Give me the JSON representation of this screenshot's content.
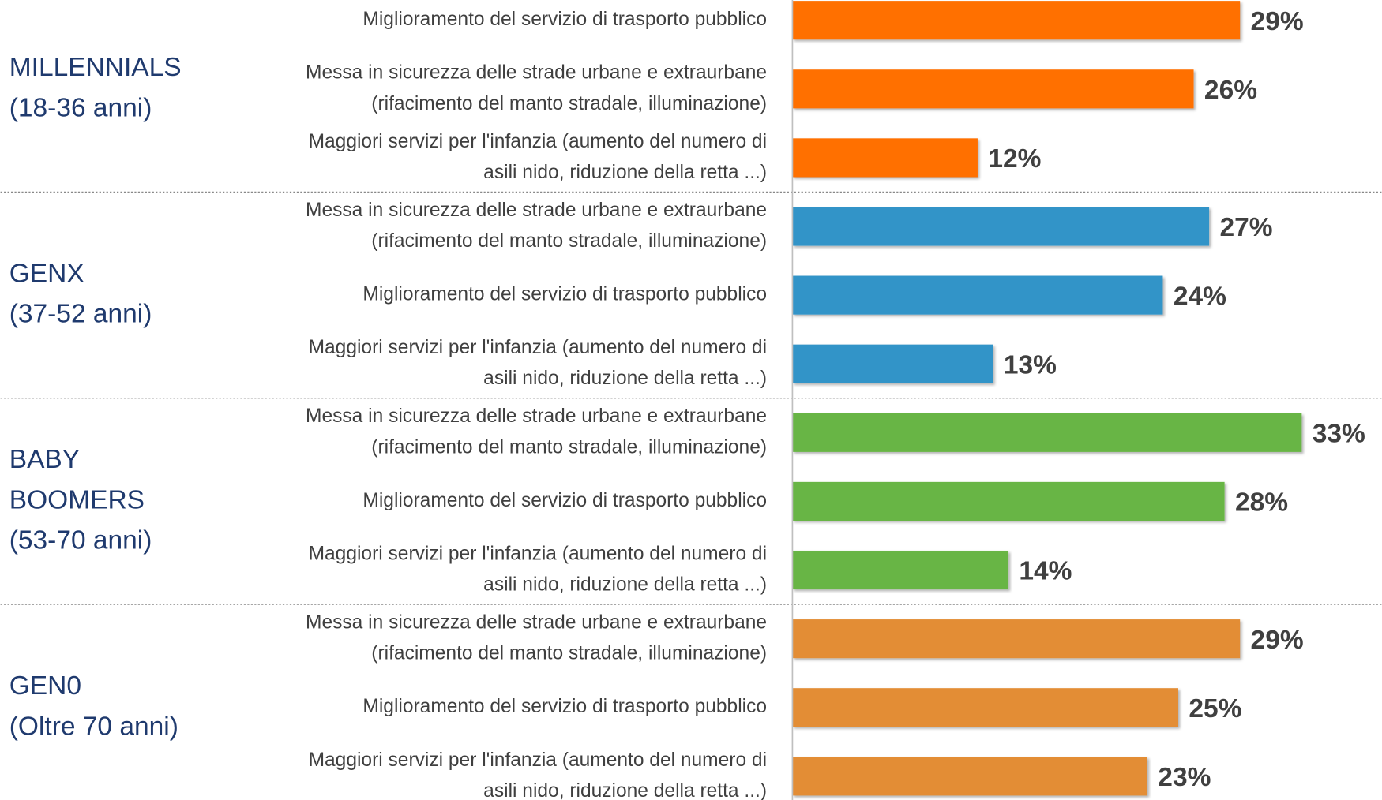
{
  "chart_data": {
    "type": "bar",
    "orientation": "horizontal",
    "xlim": [
      0,
      40
    ],
    "groups": [
      {
        "label": [
          "MILLENNIALS",
          "(18-36 anni)"
        ],
        "color": "#ff6f00",
        "categories": [
          [
            "Miglioramento del servizio di trasporto pubblico"
          ],
          [
            "Messa in sicurezza delle strade urbane e extraurbane",
            "(rifacimento del manto stradale, illuminazione)"
          ],
          [
            "Maggiori servizi per l'infanzia (aumento del numero di",
            "asili nido, riduzione della retta ...)"
          ]
        ],
        "values": [
          29,
          26,
          12
        ],
        "value_labels": [
          "29%",
          "26%",
          "12%"
        ]
      },
      {
        "label": [
          "GENX",
          "(37-52 anni)"
        ],
        "color": "#3194c8",
        "categories": [
          [
            "Messa in sicurezza delle strade urbane e extraurbane",
            "(rifacimento del manto stradale, illuminazione)"
          ],
          [
            "Miglioramento del servizio di trasporto pubblico"
          ],
          [
            "Maggiori servizi per l'infanzia (aumento del numero di",
            "asili nido, riduzione della retta ...)"
          ]
        ],
        "values": [
          27,
          24,
          13
        ],
        "value_labels": [
          "27%",
          "24%",
          "13%"
        ]
      },
      {
        "label": [
          "BABY",
          "BOOMERS",
          "(53-70 anni)"
        ],
        "color": "#68b545",
        "categories": [
          [
            "Messa in sicurezza delle strade urbane e extraurbane",
            "(rifacimento del manto stradale, illuminazione)"
          ],
          [
            "Miglioramento del servizio di trasporto pubblico"
          ],
          [
            "Maggiori servizi per l'infanzia (aumento del numero di",
            "asili nido, riduzione della retta ...)"
          ]
        ],
        "values": [
          33,
          28,
          14
        ],
        "value_labels": [
          "33%",
          "28%",
          "14%"
        ]
      },
      {
        "label": [
          "GEN0",
          "(Oltre 70 anni)"
        ],
        "color": "#e38d35",
        "categories": [
          [
            "Messa in sicurezza delle strade urbane e extraurbane",
            "(rifacimento del manto stradale, illuminazione)"
          ],
          [
            "Miglioramento del servizio di trasporto pubblico"
          ],
          [
            "Maggiori servizi per l'infanzia (aumento del numero di",
            "asili nido, riduzione della retta ...)"
          ]
        ],
        "values": [
          29,
          25,
          23
        ],
        "value_labels": [
          "29%",
          "25%",
          "23%"
        ]
      }
    ]
  }
}
